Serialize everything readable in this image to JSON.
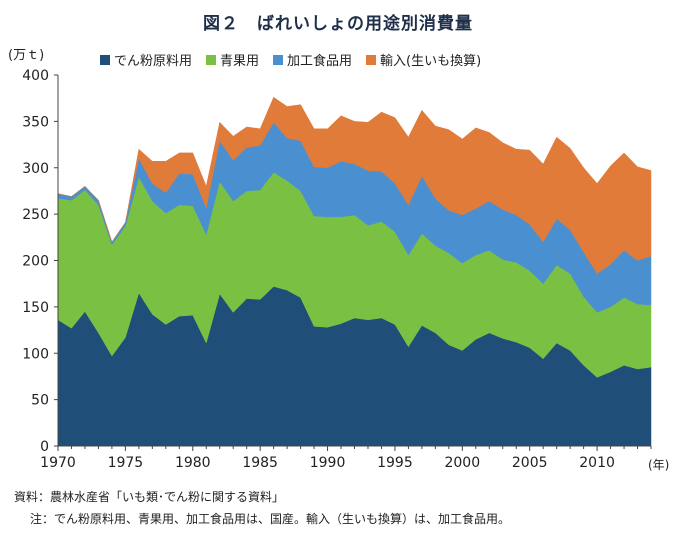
{
  "chart_data": {
    "type": "area",
    "stacked": true,
    "title": "図２　ばれいしょの用途別消費量",
    "ylabel": "(万ｔ)",
    "xlabel": "(年)",
    "ylim": [
      0,
      400
    ],
    "yticks": [
      0,
      50,
      100,
      150,
      200,
      250,
      300,
      350,
      400
    ],
    "xlim": [
      1970,
      2014
    ],
    "xticks": [
      1970,
      1975,
      1980,
      1985,
      1990,
      1995,
      2000,
      2005,
      2010
    ],
    "grid": false,
    "legend_position": "top",
    "x": [
      1970,
      1971,
      1972,
      1973,
      1974,
      1975,
      1976,
      1977,
      1978,
      1979,
      1980,
      1981,
      1982,
      1983,
      1984,
      1985,
      1986,
      1987,
      1988,
      1989,
      1990,
      1991,
      1992,
      1993,
      1994,
      1995,
      1996,
      1997,
      1998,
      1999,
      2000,
      2001,
      2002,
      2003,
      2004,
      2005,
      2006,
      2007,
      2008,
      2009,
      2010,
      2011,
      2012,
      2013,
      2014
    ],
    "series": [
      {
        "name": "でん粉原料用",
        "color": "#1f4e79",
        "values": [
          136,
          127,
          145,
          122,
          97,
          117,
          165,
          142,
          131,
          140,
          141,
          111,
          164,
          144,
          159,
          158,
          172,
          168,
          160,
          129,
          128,
          132,
          138,
          136,
          138,
          131,
          107,
          130,
          122,
          109,
          103,
          115,
          122,
          116,
          112,
          106,
          94,
          111,
          103,
          87,
          74,
          80,
          87,
          83,
          85
        ]
      },
      {
        "name": "青果用",
        "color": "#7ac143",
        "values": [
          131,
          138,
          131,
          138,
          120,
          120,
          125,
          122,
          120,
          120,
          118,
          117,
          121,
          120,
          116,
          118,
          123,
          118,
          115,
          119,
          119,
          115,
          111,
          102,
          104,
          100,
          99,
          99,
          94,
          99,
          94,
          91,
          89,
          85,
          86,
          83,
          81,
          84,
          83,
          74,
          70,
          70,
          73,
          70,
          67
        ]
      },
      {
        "name": "加工食品用",
        "color": "#4a90d0",
        "values": [
          5,
          4,
          4,
          5,
          3,
          4,
          20,
          19,
          22,
          34,
          34,
          29,
          44,
          44,
          47,
          48,
          54,
          46,
          54,
          53,
          53,
          60,
          55,
          59,
          54,
          52,
          54,
          62,
          51,
          46,
          52,
          50,
          53,
          54,
          51,
          50,
          45,
          50,
          47,
          48,
          42,
          46,
          51,
          47,
          53
        ]
      },
      {
        "name": "輸入(生いも換算)",
        "color": "#e07b39",
        "values": [
          0,
          0,
          0,
          0,
          0,
          0,
          10,
          24,
          34,
          22,
          23,
          23,
          20,
          26,
          22,
          18,
          27,
          34,
          39,
          41,
          42,
          49,
          46,
          52,
          64,
          71,
          73,
          71,
          78,
          87,
          82,
          87,
          74,
          72,
          71,
          80,
          84,
          88,
          88,
          91,
          97,
          106,
          105,
          101,
          92
        ]
      }
    ]
  },
  "source_note": "資料：農林水産省「いも類･でん粉に関する資料」",
  "footnote": "注：でん粉原料用、青果用、加工食品用は、国産。輸入（生いも換算）は、加工食品用。"
}
